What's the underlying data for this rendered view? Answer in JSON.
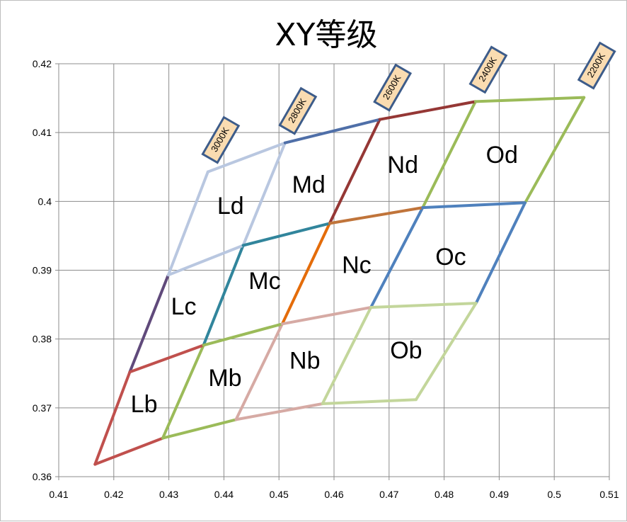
{
  "chart_data": {
    "type": "line",
    "title": "XY等级",
    "xlabel": "",
    "ylabel": "",
    "xlim": [
      0.41,
      0.51
    ],
    "ylim": [
      0.36,
      0.42
    ],
    "x_ticks": [
      "0.41",
      "0.42",
      "0.43",
      "0.44",
      "0.45",
      "0.46",
      "0.47",
      "0.48",
      "0.49",
      "0.5",
      "0.51"
    ],
    "y_ticks": [
      "0.36",
      "0.37",
      "0.38",
      "0.39",
      "0.4",
      "0.41",
      "0.42"
    ],
    "grid": true,
    "series": [
      {
        "color": "#c0504d",
        "points": [
          [
            0.4166,
            0.3618
          ],
          [
            0.4229,
            0.3752
          ]
        ]
      },
      {
        "color": "#604a7b",
        "points": [
          [
            0.4229,
            0.3752
          ],
          [
            0.4299,
            0.3893
          ]
        ]
      },
      {
        "color": "#b9c7e0",
        "points": [
          [
            0.4299,
            0.3893
          ],
          [
            0.4371,
            0.4043
          ]
        ]
      },
      {
        "color": "#9bbb59",
        "points": [
          [
            0.4289,
            0.3656
          ],
          [
            0.4363,
            0.3791
          ]
        ]
      },
      {
        "color": "#31859c",
        "points": [
          [
            0.4363,
            0.3791
          ],
          [
            0.4435,
            0.3936
          ]
        ]
      },
      {
        "color": "#b9c7e0",
        "points": [
          [
            0.4435,
            0.3936
          ],
          [
            0.4511,
            0.4085
          ]
        ]
      },
      {
        "color": "#d6aaa4",
        "points": [
          [
            0.4422,
            0.3683
          ],
          [
            0.4506,
            0.3822
          ]
        ]
      },
      {
        "color": "#e46c0a",
        "points": [
          [
            0.4506,
            0.3822
          ],
          [
            0.4592,
            0.3968
          ]
        ]
      },
      {
        "color": "#953735",
        "points": [
          [
            0.4592,
            0.3968
          ],
          [
            0.4683,
            0.4119
          ]
        ]
      },
      {
        "color": "#c3d69b",
        "points": [
          [
            0.4579,
            0.3706
          ],
          [
            0.4667,
            0.3846
          ]
        ]
      },
      {
        "color": "#4f81bd",
        "points": [
          [
            0.4667,
            0.3846
          ],
          [
            0.4761,
            0.3991
          ]
        ]
      },
      {
        "color": "#9bbb59",
        "points": [
          [
            0.4761,
            0.3991
          ],
          [
            0.4857,
            0.4145
          ]
        ]
      },
      {
        "color": "#c3d69b",
        "points": [
          [
            0.4749,
            0.3712
          ],
          [
            0.4858,
            0.3852
          ]
        ]
      },
      {
        "color": "#4f81bd",
        "points": [
          [
            0.4858,
            0.3852
          ],
          [
            0.4947,
            0.3998
          ]
        ]
      },
      {
        "color": "#9bbb59",
        "points": [
          [
            0.4947,
            0.3998
          ],
          [
            0.5054,
            0.4151
          ]
        ]
      },
      {
        "color": "#c0504d",
        "points": [
          [
            0.4166,
            0.3618
          ],
          [
            0.4289,
            0.3656
          ]
        ]
      },
      {
        "color": "#9bbb59",
        "points": [
          [
            0.4289,
            0.3656
          ],
          [
            0.4422,
            0.3683
          ]
        ]
      },
      {
        "color": "#d6aaa4",
        "points": [
          [
            0.4422,
            0.3683
          ],
          [
            0.4579,
            0.3706
          ]
        ]
      },
      {
        "color": "#c3d69b",
        "points": [
          [
            0.4579,
            0.3706
          ],
          [
            0.4749,
            0.3712
          ]
        ]
      },
      {
        "color": "#c0504d",
        "points": [
          [
            0.4229,
            0.3752
          ],
          [
            0.4363,
            0.3791
          ]
        ]
      },
      {
        "color": "#9bbb59",
        "points": [
          [
            0.4363,
            0.3791
          ],
          [
            0.4506,
            0.3822
          ]
        ]
      },
      {
        "color": "#d6aaa4",
        "points": [
          [
            0.4506,
            0.3822
          ],
          [
            0.4667,
            0.3846
          ]
        ]
      },
      {
        "color": "#c3d69b",
        "points": [
          [
            0.4667,
            0.3846
          ],
          [
            0.4858,
            0.3852
          ]
        ]
      },
      {
        "color": "#b9c7e0",
        "points": [
          [
            0.4299,
            0.3893
          ],
          [
            0.4435,
            0.3936
          ]
        ]
      },
      {
        "color": "#31859c",
        "points": [
          [
            0.4435,
            0.3936
          ],
          [
            0.4592,
            0.3968
          ]
        ]
      },
      {
        "color": "#c0743a",
        "points": [
          [
            0.4592,
            0.3968
          ],
          [
            0.4761,
            0.3991
          ]
        ]
      },
      {
        "color": "#4f81bd",
        "points": [
          [
            0.4761,
            0.3991
          ],
          [
            0.4947,
            0.3998
          ]
        ]
      },
      {
        "color": "#b9c7e0",
        "points": [
          [
            0.4371,
            0.4043
          ],
          [
            0.4511,
            0.4085
          ]
        ]
      },
      {
        "color": "#4f6fa8",
        "points": [
          [
            0.4511,
            0.4085
          ],
          [
            0.4683,
            0.4119
          ]
        ]
      },
      {
        "color": "#953735",
        "points": [
          [
            0.4683,
            0.4119
          ],
          [
            0.4857,
            0.4145
          ]
        ]
      },
      {
        "color": "#9bbb59",
        "points": [
          [
            0.4857,
            0.4145
          ],
          [
            0.5054,
            0.4151
          ]
        ]
      }
    ],
    "region_labels": [
      {
        "text": "Lb",
        "x": 0.4255,
        "y": 0.3703
      },
      {
        "text": "Mb",
        "x": 0.4402,
        "y": 0.3741
      },
      {
        "text": "Nb",
        "x": 0.4547,
        "y": 0.3766
      },
      {
        "text": "Ob",
        "x": 0.4731,
        "y": 0.3781
      },
      {
        "text": "Lc",
        "x": 0.4327,
        "y": 0.3845
      },
      {
        "text": "Mc",
        "x": 0.4474,
        "y": 0.3882
      },
      {
        "text": "Nc",
        "x": 0.4641,
        "y": 0.3905
      },
      {
        "text": "Oc",
        "x": 0.4812,
        "y": 0.3917
      },
      {
        "text": "Ld",
        "x": 0.4412,
        "y": 0.3991
      },
      {
        "text": "Md",
        "x": 0.4554,
        "y": 0.4022
      },
      {
        "text": "Nd",
        "x": 0.4725,
        "y": 0.4051
      },
      {
        "text": "Od",
        "x": 0.4905,
        "y": 0.4065
      }
    ],
    "cct_labels": [
      {
        "text": "3000K",
        "x": 0.4371,
        "y": 0.4043
      },
      {
        "text": "2800K",
        "x": 0.4511,
        "y": 0.4085
      },
      {
        "text": "2600K",
        "x": 0.4683,
        "y": 0.4119
      },
      {
        "text": "2400K",
        "x": 0.4857,
        "y": 0.4145
      },
      {
        "text": "2200K",
        "x": 0.5054,
        "y": 0.4151
      }
    ]
  }
}
